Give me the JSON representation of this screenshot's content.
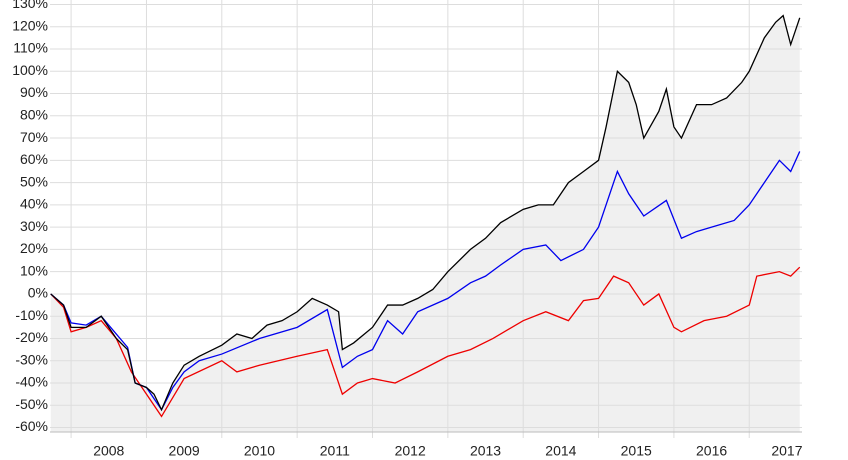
{
  "chart_data": {
    "type": "line",
    "xlim": [
      2007.72,
      2017.7
    ],
    "ylim": [
      -62,
      132
    ],
    "xticks": [
      {
        "value": 2008.5,
        "label": "2008"
      },
      {
        "value": 2009.5,
        "label": "2009"
      },
      {
        "value": 2010.5,
        "label": "2010"
      },
      {
        "value": 2011.5,
        "label": "2011"
      },
      {
        "value": 2012.5,
        "label": "2012"
      },
      {
        "value": 2013.5,
        "label": "2013"
      },
      {
        "value": 2014.5,
        "label": "2014"
      },
      {
        "value": 2015.5,
        "label": "2015"
      },
      {
        "value": 2016.5,
        "label": "2016"
      },
      {
        "value": 2017.5,
        "label": "2017"
      }
    ],
    "yticks": [
      {
        "value": 130,
        "label": "130%"
      },
      {
        "value": 120,
        "label": "120%"
      },
      {
        "value": 110,
        "label": "110%"
      },
      {
        "value": 100,
        "label": "100%"
      },
      {
        "value": 90,
        "label": "90%"
      },
      {
        "value": 80,
        "label": "80%"
      },
      {
        "value": 70,
        "label": "70%"
      },
      {
        "value": 60,
        "label": "60%"
      },
      {
        "value": 50,
        "label": "50%"
      },
      {
        "value": 40,
        "label": "40%"
      },
      {
        "value": 30,
        "label": "30%"
      },
      {
        "value": 20,
        "label": "20%"
      },
      {
        "value": 10,
        "label": "10%"
      },
      {
        "value": 0,
        "label": "0%"
      },
      {
        "value": -10,
        "label": "-10%"
      },
      {
        "value": -20,
        "label": "-20%"
      },
      {
        "value": -30,
        "label": "-30%"
      },
      {
        "value": -40,
        "label": "-40%"
      },
      {
        "value": -50,
        "label": "-50%"
      },
      {
        "value": -60,
        "label": "-60%"
      }
    ],
    "grid": true,
    "area_fill": "#f0f0f0",
    "series": [
      {
        "color": "#000000",
        "area": true,
        "x": [
          2007.73,
          2007.9,
          2008.0,
          2008.2,
          2008.4,
          2008.6,
          2008.75,
          2008.85,
          2009.0,
          2009.1,
          2009.2,
          2009.35,
          2009.5,
          2009.7,
          2010.0,
          2010.2,
          2010.4,
          2010.6,
          2010.8,
          2011.0,
          2011.2,
          2011.4,
          2011.55,
          2011.6,
          2011.75,
          2012.0,
          2012.2,
          2012.4,
          2012.6,
          2012.8,
          2013.0,
          2013.3,
          2013.5,
          2013.7,
          2014.0,
          2014.2,
          2014.4,
          2014.6,
          2014.8,
          2015.0,
          2015.1,
          2015.25,
          2015.4,
          2015.5,
          2015.6,
          2015.8,
          2015.9,
          2016.0,
          2016.1,
          2016.3,
          2016.5,
          2016.7,
          2016.9,
          2017.0,
          2017.2,
          2017.35,
          2017.45,
          2017.55,
          2017.67
        ],
        "values": [
          0,
          -5,
          -15,
          -15,
          -10,
          -20,
          -25,
          -40,
          -42,
          -45,
          -52,
          -40,
          -32,
          -28,
          -23,
          -18,
          -20,
          -14,
          -12,
          -8,
          -2,
          -5,
          -8,
          -25,
          -22,
          -15,
          -5,
          -5,
          -2,
          2,
          10,
          20,
          25,
          32,
          38,
          40,
          40,
          50,
          55,
          60,
          75,
          100,
          95,
          85,
          70,
          82,
          92,
          75,
          70,
          85,
          85,
          88,
          95,
          100,
          115,
          122,
          125,
          112,
          124
        ]
      },
      {
        "color": "#0000ee",
        "x": [
          2007.73,
          2007.9,
          2008.0,
          2008.2,
          2008.4,
          2008.6,
          2008.75,
          2008.85,
          2009.0,
          2009.2,
          2009.35,
          2009.5,
          2009.7,
          2010.0,
          2010.5,
          2011.0,
          2011.4,
          2011.6,
          2011.8,
          2012.0,
          2012.2,
          2012.4,
          2012.6,
          2013.0,
          2013.3,
          2013.5,
          2013.7,
          2014.0,
          2014.3,
          2014.5,
          2014.8,
          2015.0,
          2015.25,
          2015.4,
          2015.6,
          2015.9,
          2016.1,
          2016.3,
          2016.5,
          2016.8,
          2017.0,
          2017.2,
          2017.4,
          2017.55,
          2017.67
        ],
        "values": [
          0,
          -5,
          -13,
          -14,
          -10,
          -18,
          -24,
          -40,
          -42,
          -52,
          -42,
          -35,
          -30,
          -27,
          -20,
          -15,
          -7,
          -33,
          -28,
          -25,
          -12,
          -18,
          -8,
          -2,
          5,
          8,
          13,
          20,
          22,
          15,
          20,
          30,
          55,
          45,
          35,
          42,
          25,
          28,
          30,
          33,
          40,
          50,
          60,
          55,
          64
        ]
      },
      {
        "color": "#ee0000",
        "x": [
          2007.73,
          2007.9,
          2008.0,
          2008.2,
          2008.4,
          2008.6,
          2008.8,
          2009.0,
          2009.2,
          2009.5,
          2010.0,
          2010.2,
          2010.5,
          2011.0,
          2011.4,
          2011.6,
          2011.8,
          2012.0,
          2012.3,
          2012.6,
          2013.0,
          2013.3,
          2013.6,
          2014.0,
          2014.3,
          2014.6,
          2014.8,
          2015.0,
          2015.2,
          2015.4,
          2015.6,
          2015.8,
          2016.0,
          2016.1,
          2016.4,
          2016.7,
          2017.0,
          2017.1,
          2017.4,
          2017.55,
          2017.67
        ],
        "values": [
          0,
          -6,
          -17,
          -15,
          -12,
          -20,
          -35,
          -45,
          -55,
          -38,
          -30,
          -35,
          -32,
          -28,
          -25,
          -45,
          -40,
          -38,
          -40,
          -35,
          -28,
          -25,
          -20,
          -12,
          -8,
          -12,
          -3,
          -2,
          8,
          5,
          -5,
          0,
          -15,
          -17,
          -12,
          -10,
          -5,
          8,
          10,
          8,
          12
        ]
      }
    ]
  }
}
